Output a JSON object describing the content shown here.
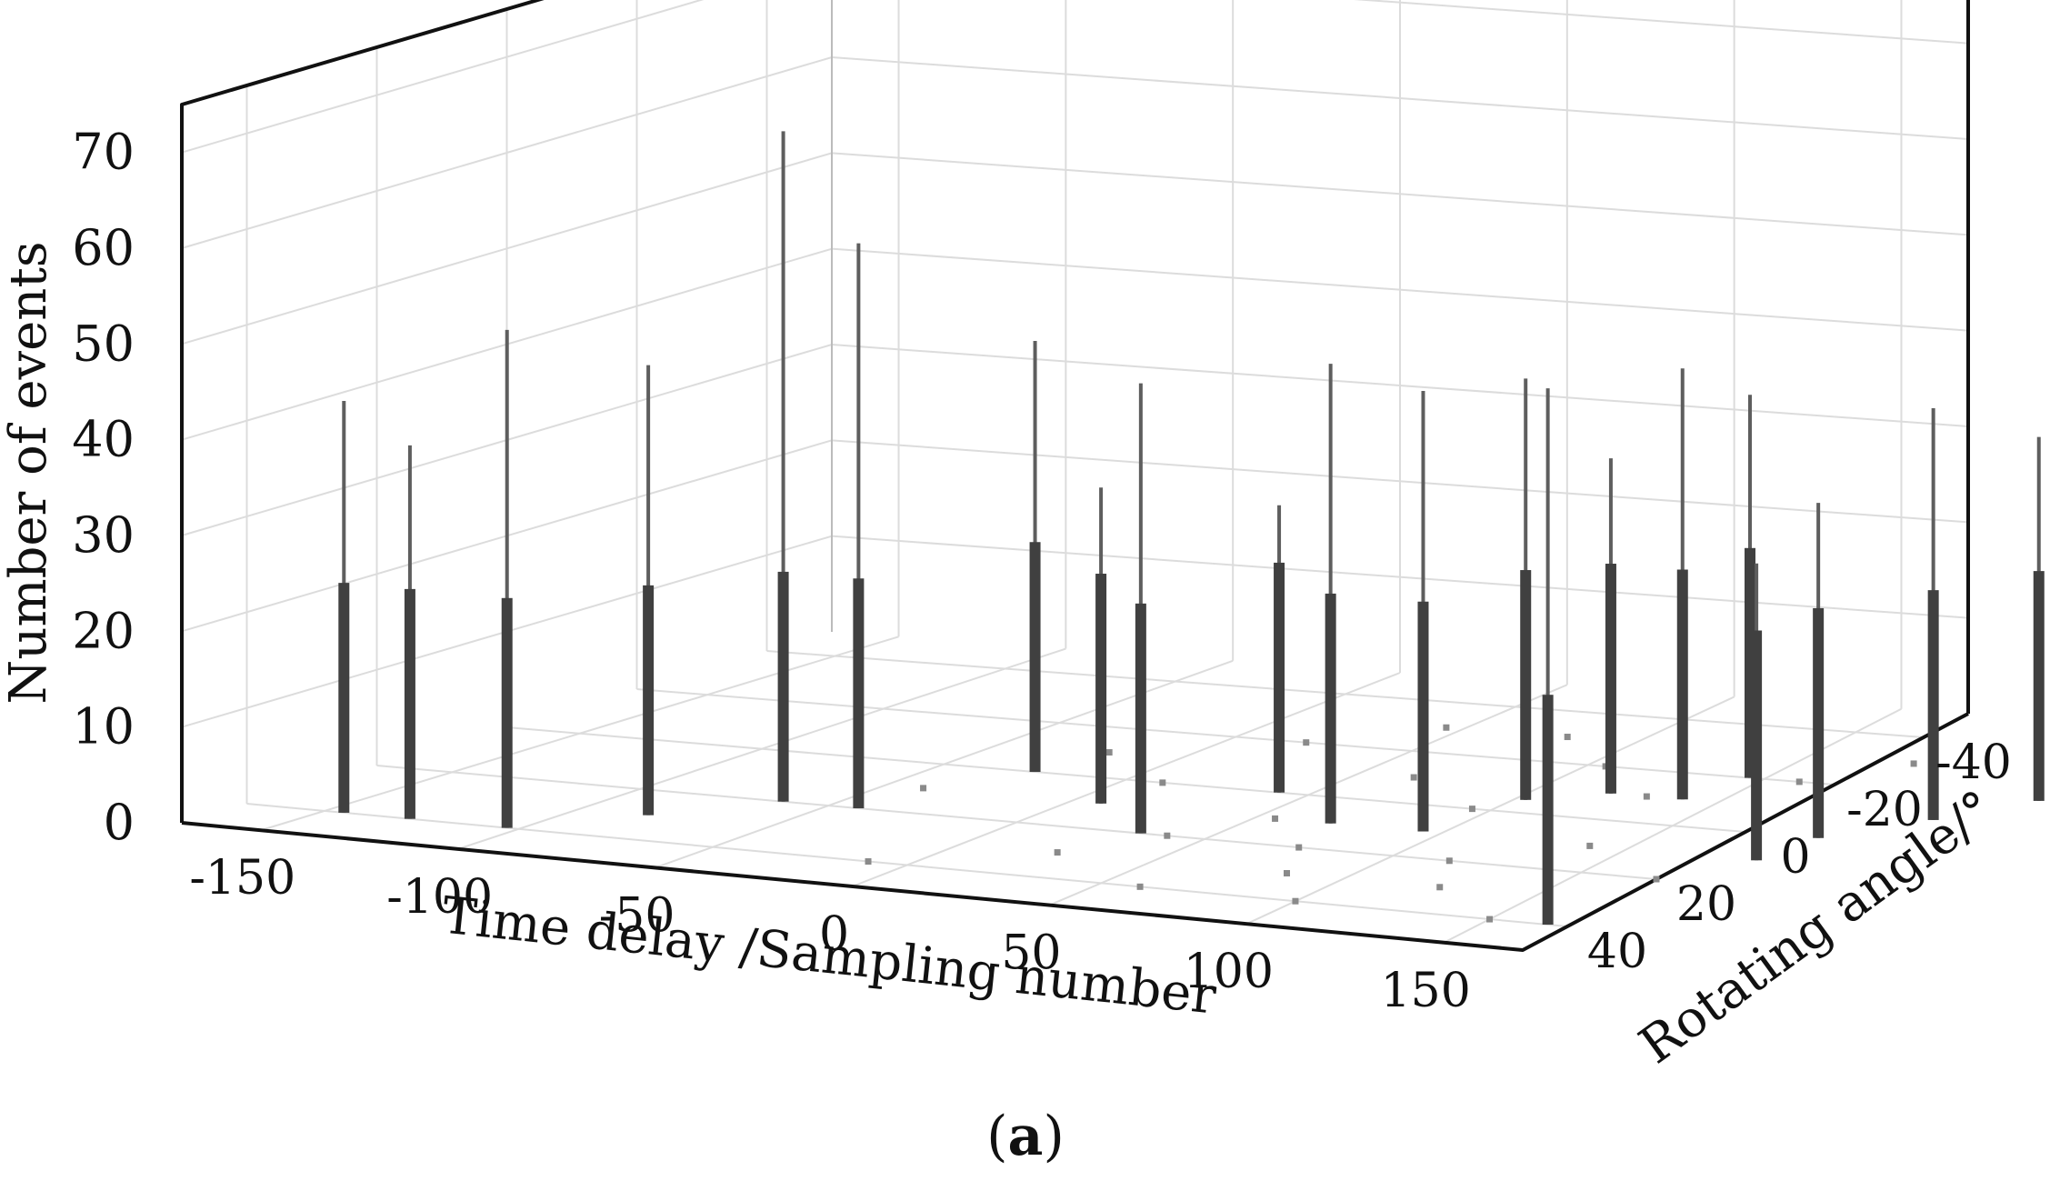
{
  "chart_data": {
    "type": "scatter",
    "subtype": "3d-stem",
    "xlabel": "Time delay /Sampling number",
    "ylabel": "Rotating angle/°",
    "zlabel": "Number of events",
    "x_ticks": [
      "-150",
      "-100",
      "-50",
      "0",
      "50",
      "100",
      "150"
    ],
    "y_ticks": [
      "-40",
      "-20",
      "0",
      "20",
      "40"
    ],
    "z_ticks": [
      "0",
      "10",
      "20",
      "30",
      "40",
      "50",
      "60",
      "70"
    ],
    "xlim": [
      -170,
      170
    ],
    "ylim": [
      -50,
      50
    ],
    "zlim": [
      0,
      75
    ],
    "grid": true,
    "panel_label": "(a)",
    "stems": [
      {
        "x": -145,
        "y": 40,
        "z": 43
      },
      {
        "x": -128,
        "y": 40,
        "z": 39
      },
      {
        "x": -103,
        "y": 40,
        "z": 52
      },
      {
        "x": -82,
        "y": 30,
        "z": 47
      },
      {
        "x": -62,
        "y": 20,
        "z": 70
      },
      {
        "x": -42,
        "y": 20,
        "z": 59
      },
      {
        "x": -25,
        "y": 0,
        "z": 45
      },
      {
        "x": 8,
        "y": 10,
        "z": 33
      },
      {
        "x": 33,
        "y": 20,
        "z": 47
      },
      {
        "x": 42,
        "y": 0,
        "z": 30
      },
      {
        "x": 70,
        "y": 10,
        "z": 48
      },
      {
        "x": 95,
        "y": 10,
        "z": 46
      },
      {
        "x": 103,
        "y": -5,
        "z": 44
      },
      {
        "x": 120,
        "y": -10,
        "z": 35
      },
      {
        "x": 140,
        "y": -10,
        "z": 45
      },
      {
        "x": 146,
        "y": -20,
        "z": 40
      },
      {
        "x": 165,
        "y": 40,
        "z": 56
      },
      {
        "x": 185,
        "y": 10,
        "z": 31
      },
      {
        "x": 190,
        "y": 0,
        "z": 35
      },
      {
        "x": 210,
        "y": -10,
        "z": 43
      },
      {
        "x": 228,
        "y": -20,
        "z": 38
      },
      {
        "x": 246,
        "y": -30,
        "z": 45
      },
      {
        "x": 268,
        "y": -40,
        "z": 63
      }
    ],
    "scatter_points": [
      {
        "x": -40,
        "y": 10,
        "z": 0
      },
      {
        "x": -20,
        "y": -10,
        "z": 0
      },
      {
        "x": -10,
        "y": 40,
        "z": 0
      },
      {
        "x": 10,
        "y": 0,
        "z": 0
      },
      {
        "x": 20,
        "y": -20,
        "z": 0
      },
      {
        "x": 25,
        "y": 30,
        "z": 0
      },
      {
        "x": 40,
        "y": 20,
        "z": 0
      },
      {
        "x": 45,
        "y": -30,
        "z": 0
      },
      {
        "x": 55,
        "y": 10,
        "z": 0
      },
      {
        "x": 60,
        "y": 40,
        "z": 0
      },
      {
        "x": 65,
        "y": -10,
        "z": 0
      },
      {
        "x": 75,
        "y": 20,
        "z": 0
      },
      {
        "x": 80,
        "y": -30,
        "z": 0
      },
      {
        "x": 85,
        "y": 30,
        "z": 0
      },
      {
        "x": 95,
        "y": 0,
        "z": 0
      },
      {
        "x": 100,
        "y": 40,
        "z": 0
      },
      {
        "x": 105,
        "y": -20,
        "z": 0
      },
      {
        "x": 115,
        "y": 20,
        "z": 0
      },
      {
        "x": 125,
        "y": 30,
        "z": 0
      },
      {
        "x": 130,
        "y": -10,
        "z": 0
      },
      {
        "x": 140,
        "y": 10,
        "z": 0
      },
      {
        "x": 150,
        "y": 40,
        "z": 0
      },
      {
        "x": 160,
        "y": -20,
        "z": 0
      },
      {
        "x": 170,
        "y": 20,
        "z": 0
      },
      {
        "x": 180,
        "y": -30,
        "z": 0
      }
    ]
  }
}
